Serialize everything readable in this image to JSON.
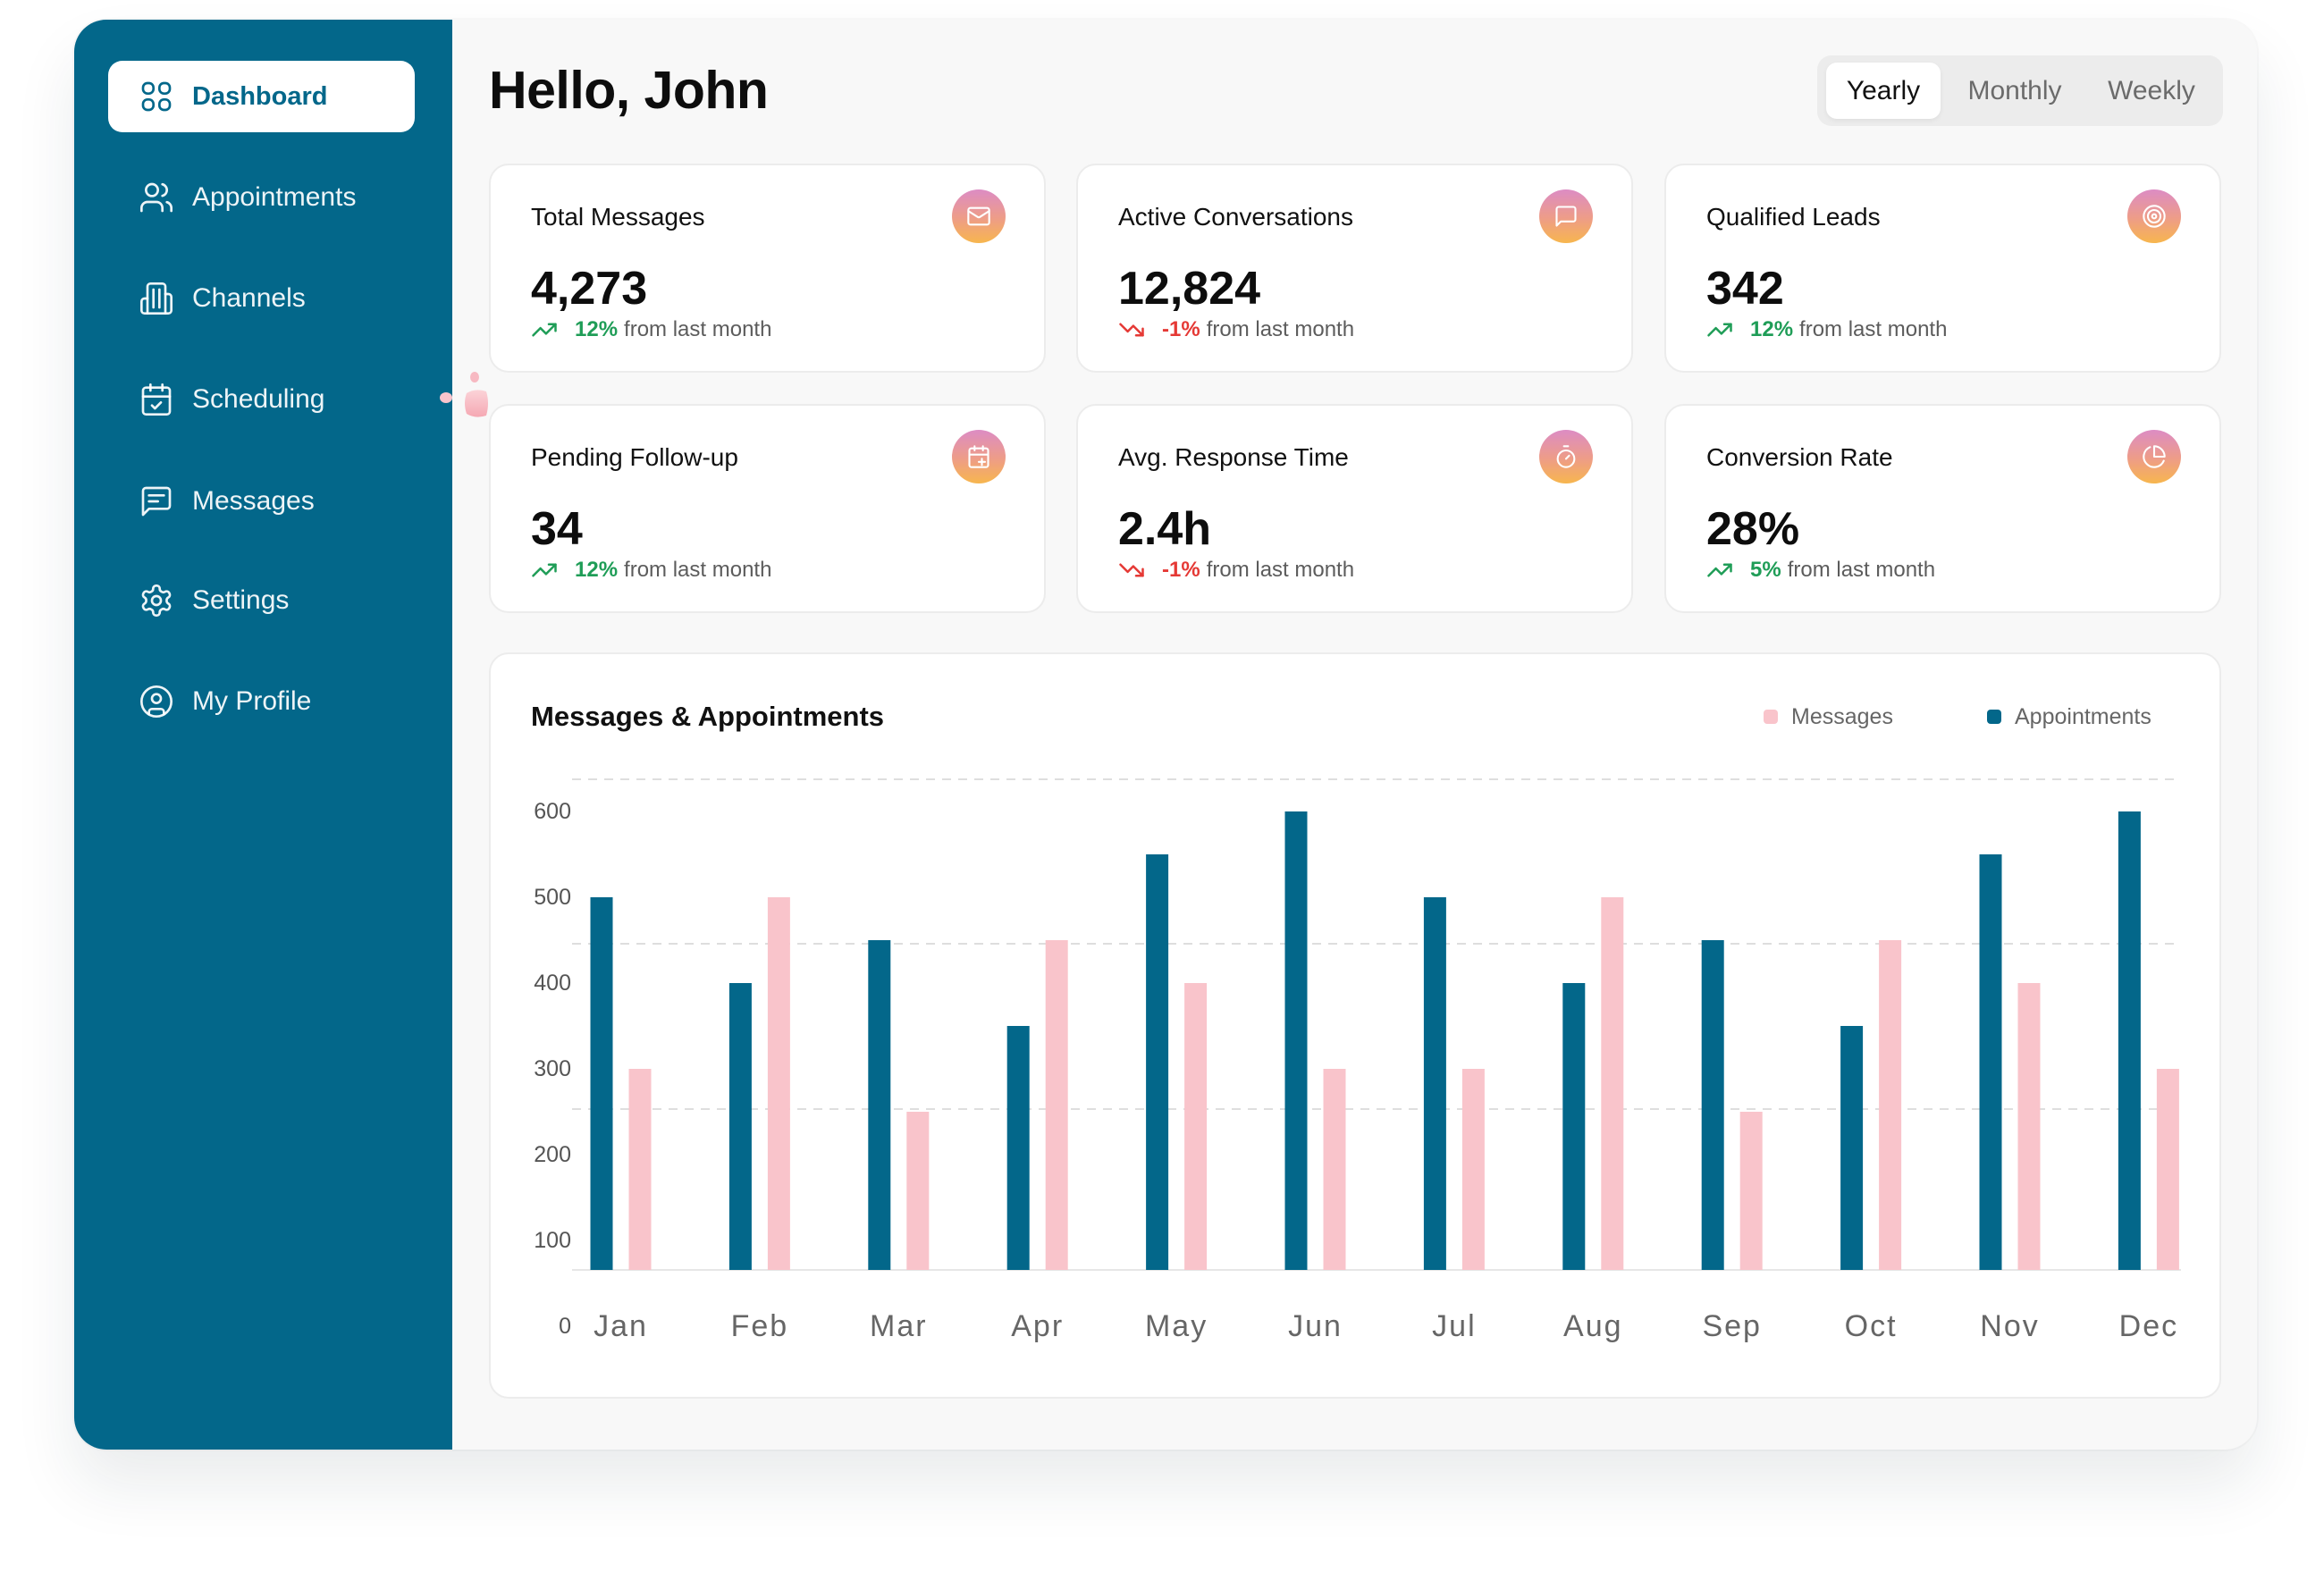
{
  "greeting": "Hello, John",
  "sidebar": {
    "items": [
      {
        "label": "Dashboard",
        "icon": "grid-icon",
        "active": true
      },
      {
        "label": "Appointments",
        "icon": "users-icon",
        "active": false
      },
      {
        "label": "Channels",
        "icon": "building-icon",
        "active": false
      },
      {
        "label": "Scheduling",
        "icon": "calendar-check-icon",
        "active": false
      },
      {
        "label": "Messages",
        "icon": "message-square-icon",
        "active": false
      },
      {
        "label": "Settings",
        "icon": "gear-icon",
        "active": false
      },
      {
        "label": "My Profile",
        "icon": "user-circle-icon",
        "active": false
      }
    ]
  },
  "period_toggle": {
    "options": [
      "Yearly",
      "Monthly",
      "Weekly"
    ],
    "selected_index": 0
  },
  "stats": [
    {
      "title": "Total Messages",
      "value": "4,273",
      "change": "12%",
      "change_suffix": "from last month",
      "icon": "mail-icon"
    },
    {
      "title": "Active Conversations",
      "value": "12,824",
      "change": "-1%",
      "change_suffix": "from last month",
      "icon": "message-square-icon"
    },
    {
      "title": "Qualified Leads",
      "value": "342",
      "change": "12%",
      "change_suffix": "from last month",
      "icon": "target-icon"
    },
    {
      "title": "Pending Follow-up",
      "value": "34",
      "change": "12%",
      "change_suffix": "from last month",
      "icon": "calendar-plus-icon"
    },
    {
      "title": "Avg. Response Time",
      "value": "2.4h",
      "change": "-1%",
      "change_suffix": "from last month",
      "icon": "timer-icon"
    },
    {
      "title": "Conversion Rate",
      "value": "28%",
      "change": "5%",
      "change_suffix": "from last month",
      "icon": "pie-chart-icon"
    }
  ],
  "chart_data": {
    "type": "bar",
    "title": "Messages & Appointments",
    "categories": [
      "Jan",
      "Feb",
      "Mar",
      "Apr",
      "May",
      "Jun",
      "Jul",
      "Aug",
      "Sep",
      "Oct",
      "Nov",
      "Dec"
    ],
    "series": [
      {
        "name": "Messages",
        "color": "#f9c4cb",
        "values": [
          300,
          500,
          250,
          450,
          400,
          300,
          300,
          500,
          250,
          450,
          400,
          300
        ]
      },
      {
        "name": "Appointments",
        "color": "#03678a",
        "values": [
          500,
          400,
          450,
          350,
          550,
          600,
          500,
          400,
          450,
          350,
          550,
          600
        ]
      }
    ],
    "yticks": [
      0,
      100,
      200,
      300,
      400,
      500,
      600
    ],
    "ylim": [
      0,
      600
    ],
    "grid": true,
    "legend": "top-right"
  },
  "colors": {
    "sidebar": "#03678a",
    "accent": "#03678a",
    "positive": "#1f9d57",
    "negative": "#e53935",
    "icon_gradient_top": "#dc8cc4",
    "icon_gradient_bottom": "#f7b64e"
  }
}
